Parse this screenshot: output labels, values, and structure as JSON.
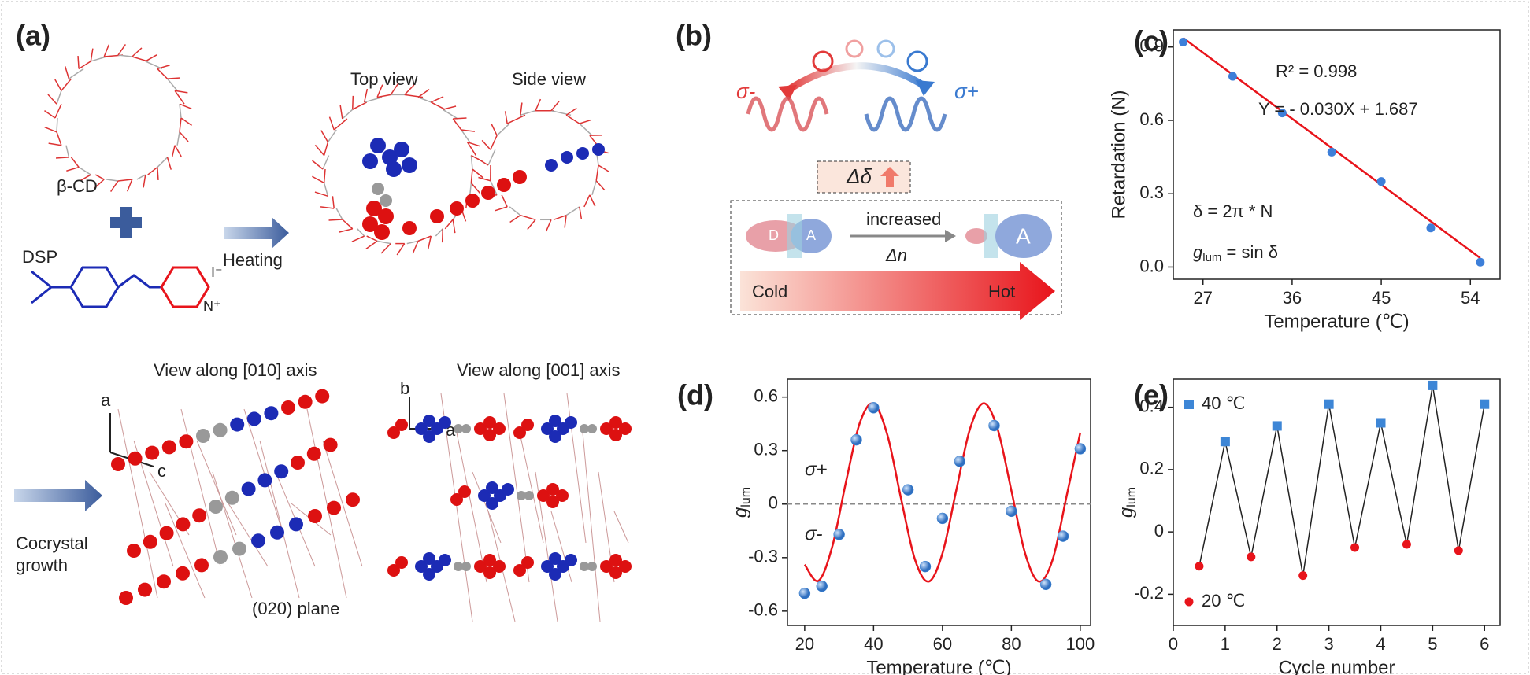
{
  "figure": {
    "panel_a": {
      "label": "(a)",
      "top_view": "Top view",
      "side_view": "Side view",
      "host": "β-CD",
      "guest": "DSP",
      "iodide": "I⁻",
      "pyridinium": "N⁺",
      "heating": "Heating",
      "view_010": "View along [010] axis",
      "view_001": "View along [001] axis",
      "axis_a1": "a",
      "axis_c": "c",
      "axis_b": "b",
      "axis_a2": "a",
      "growth_line1": "Cocrystal",
      "growth_line2": "growth",
      "plane": "(020) plane"
    },
    "panel_b": {
      "label": "(b)",
      "sigma_minus": "σ-",
      "sigma_plus": "σ+",
      "delta": "Δδ",
      "increased": "increased",
      "delta_n": "Δn",
      "donor": "D",
      "acceptor_small": "A",
      "acceptor_big": "A",
      "cold": "Cold",
      "hot": "Hot"
    }
  },
  "chart_data": [
    {
      "type": "scatter",
      "panel_label": "(c)",
      "xlabel": "Temperature (℃)",
      "ylabel": "Retardation (N)",
      "series": [
        {
          "color": "#3d7fd9",
          "marker": "circle",
          "x": [
            25,
            30,
            35,
            40,
            45,
            50,
            55
          ],
          "values": [
            0.92,
            0.78,
            0.63,
            0.47,
            0.35,
            0.16,
            0.02
          ]
        }
      ],
      "fit": {
        "color": "#e8141b",
        "x": [
          25,
          55
        ],
        "values": [
          0.937,
          0.037
        ]
      },
      "xlim": [
        24,
        57
      ],
      "xticks": [
        27,
        36,
        45,
        54
      ],
      "ylim": [
        -0.05,
        0.97
      ],
      "yticks": [
        {
          "value": 0,
          "label": "0.0"
        },
        0.3,
        0.6,
        0.9
      ],
      "annotations": {
        "r_squared": "R² = 0.998",
        "equation": "Y = - 0.030X + 1.687",
        "delta_formula": "δ = 2π * N",
        "glum_g": "g",
        "glum_sub": "lum",
        "glum_rest": " = sin δ"
      }
    },
    {
      "type": "scatter",
      "panel_label": "(d)",
      "xlabel": "Temperature (℃)",
      "ylabel": {
        "main": "g",
        "sub": "lum"
      },
      "series": [
        {
          "color": "#3d86d6",
          "marker": "ball",
          "x": [
            20,
            25,
            30,
            35,
            40,
            50,
            55,
            60,
            65,
            75,
            80,
            90,
            95,
            100
          ],
          "values": [
            -0.5,
            -0.46,
            -0.17,
            0.36,
            0.54,
            0.08,
            -0.35,
            -0.08,
            0.24,
            0.44,
            -0.04,
            -0.45,
            -0.18,
            0.31
          ]
        }
      ],
      "fit": {
        "color": "#e8141b",
        "x": [
          20,
          24,
          28,
          32,
          36,
          40,
          44,
          48,
          52,
          56,
          60,
          64,
          68,
          72,
          76,
          80,
          84,
          88,
          92,
          96,
          100
        ],
        "values": [
          -0.339,
          -0.43,
          -0.239,
          0.125,
          0.455,
          0.563,
          0.388,
          0.029,
          -0.31,
          -0.434,
          -0.276,
          0.077,
          0.422,
          0.565,
          0.421,
          0.076,
          -0.277,
          -0.434,
          -0.31,
          0.042,
          0.4
        ]
      },
      "xlim": [
        15,
        103
      ],
      "xticks": [
        20,
        40,
        60,
        80,
        100
      ],
      "ylim": [
        -0.68,
        0.7
      ],
      "yticks": [
        -0.6,
        -0.3,
        0,
        0.3,
        0.6
      ],
      "dashed_zero": true,
      "annotations": {
        "sigma_plus": "σ+",
        "sigma_minus": "σ-"
      }
    },
    {
      "type": "line",
      "panel_label": "(e)",
      "xlabel": "Cycle number",
      "ylabel": {
        "main": "g",
        "sub": "lum"
      },
      "series": [
        {
          "name": "40 ℃",
          "color": "#3d86d6",
          "marker": "square",
          "legend": "upper left",
          "x": [
            1,
            2,
            3,
            4,
            5,
            6
          ],
          "values": [
            0.29,
            0.34,
            0.41,
            0.35,
            0.47,
            0.41
          ]
        },
        {
          "name": "20 ℃",
          "color": "#e8141b",
          "marker": "circle",
          "legend": "lower left",
          "x": [
            0.5,
            1.5,
            2.5,
            3.5,
            4.5,
            5.5
          ],
          "values": [
            -0.11,
            -0.08,
            -0.14,
            -0.05,
            -0.04,
            -0.06
          ]
        }
      ],
      "line_color": "#222222",
      "xlim": [
        0,
        6.3
      ],
      "xticks": [
        0,
        1,
        2,
        3,
        4,
        5,
        6
      ],
      "ylim": [
        -0.3,
        0.49
      ],
      "yticks": [
        -0.2,
        0,
        0.2,
        0.4
      ]
    }
  ]
}
